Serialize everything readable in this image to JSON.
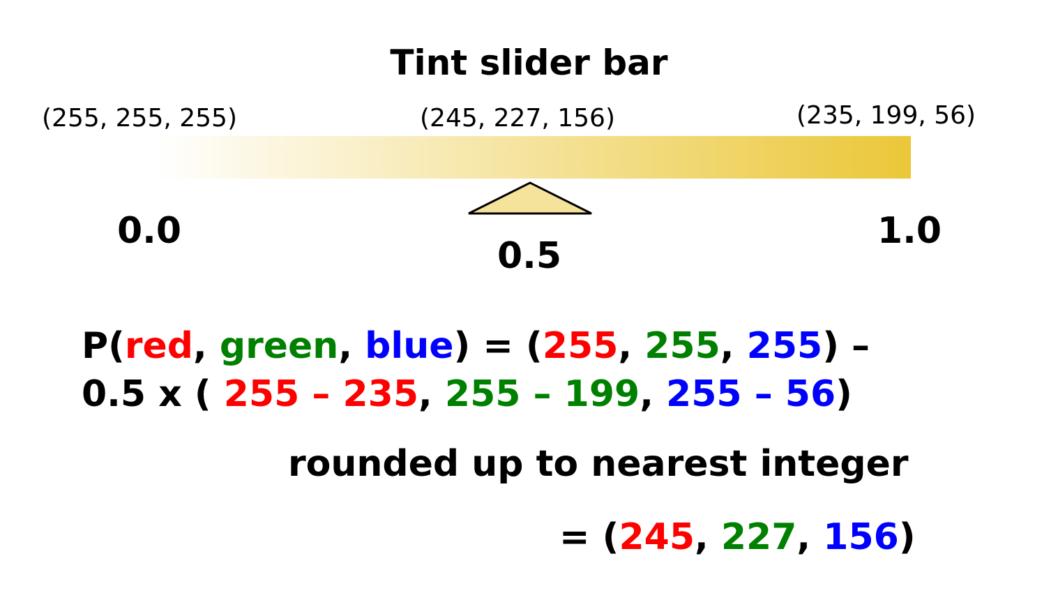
{
  "title": "Tint slider bar",
  "colors": {
    "white_end": "#ffffff",
    "mid": "#f5e39c",
    "tint_end": "#ebc738",
    "pointer_fill": "#f5e39c",
    "red": "#ff0000",
    "green": "#008000",
    "blue": "#0000ff"
  },
  "slider": {
    "value": 0.5,
    "range": [
      0.0,
      1.0
    ],
    "left_rgb": "(255, 255, 255)",
    "mid_rgb": "(245, 227, 156)",
    "right_rgb": "(235, 199, 56)",
    "left_label": "0.0",
    "mid_label": "0.5",
    "right_label": "1.0"
  },
  "formula": {
    "line1": {
      "p_open": "P(",
      "red": "red",
      "c1": ", ",
      "green": "green",
      "c2": ", ",
      "blue": "blue",
      "mid": ") = (",
      "r255": "255",
      "c3": ", ",
      "g255": "255",
      "c4": ", ",
      "b255": "255",
      "end": ") –"
    },
    "line2": {
      "start": "0.5 x ( ",
      "rdiff": "255 – 235",
      "c1": ", ",
      "gdiff": "255 – 199",
      "c2": ", ",
      "bdiff": "255 – 56",
      "end": ")"
    },
    "note": "rounded up to nearest integer",
    "result": {
      "start": "= (",
      "r": "245",
      "c1": ", ",
      "g": "227",
      "c2": ", ",
      "b": "156",
      "end": ")"
    }
  }
}
